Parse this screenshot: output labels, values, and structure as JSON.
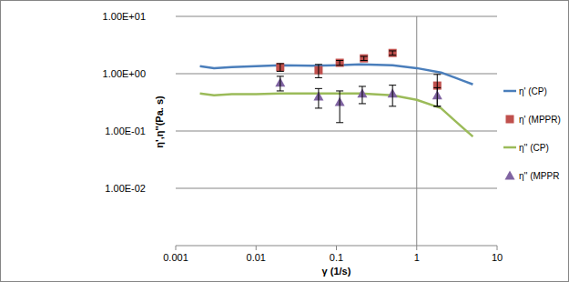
{
  "chart_data": {
    "type": "line",
    "x_label": "γ (1/s)",
    "y_label": "η',η''(Pa. s)",
    "log": true,
    "grid": true,
    "legend": "right",
    "xlim": [
      0.001,
      10
    ],
    "ylim": [
      0.001,
      10
    ],
    "xticks": [
      0.001,
      0.01,
      0.1,
      1,
      10
    ],
    "yticks": [
      {
        "value": 0.01,
        "label": "1.00E-02"
      },
      {
        "value": 0.1,
        "label": "1.00E-01"
      },
      {
        "value": 1,
        "label": "1.00E+00"
      },
      {
        "value": 10,
        "label": "1.00E+01"
      }
    ],
    "series": [
      {
        "name": "η' (CP)",
        "type": "line",
        "color": "#4a7ebb",
        "x": [
          0.002,
          0.003,
          0.005,
          0.01,
          0.02,
          0.05,
          0.1,
          0.2,
          0.5,
          1,
          2,
          3,
          5
        ],
        "values": [
          1.35,
          1.25,
          1.3,
          1.35,
          1.4,
          1.38,
          1.4,
          1.45,
          1.4,
          1.25,
          1.05,
          0.85,
          0.65
        ]
      },
      {
        "name": "η' (MPPR)",
        "type": "scatter",
        "marker": "square",
        "color": "#c0504d",
        "x": [
          0.02,
          0.06,
          0.11,
          0.22,
          0.5,
          1.8
        ],
        "values": [
          1.3,
          1.15,
          1.55,
          1.85,
          2.3,
          0.62
        ],
        "errors": [
          0.2,
          0.3,
          0.15,
          0.15,
          0.2,
          0.35
        ]
      },
      {
        "name": "η'' (CP)",
        "type": "line",
        "color": "#9bbb59",
        "x": [
          0.002,
          0.003,
          0.005,
          0.01,
          0.02,
          0.05,
          0.1,
          0.2,
          0.5,
          1,
          2,
          3,
          5
        ],
        "values": [
          0.45,
          0.42,
          0.44,
          0.44,
          0.45,
          0.45,
          0.45,
          0.45,
          0.42,
          0.35,
          0.25,
          0.15,
          0.08
        ]
      },
      {
        "name": "η'' (MPPR",
        "type": "scatter",
        "marker": "triangle",
        "color": "#8064a2",
        "x": [
          0.02,
          0.06,
          0.11,
          0.21,
          0.5,
          1.8
        ],
        "values": [
          0.7,
          0.4,
          0.32,
          0.45,
          0.45,
          0.42
        ],
        "errors": [
          0.2,
          0.15,
          0.18,
          0.15,
          0.18,
          0.15
        ]
      }
    ]
  }
}
